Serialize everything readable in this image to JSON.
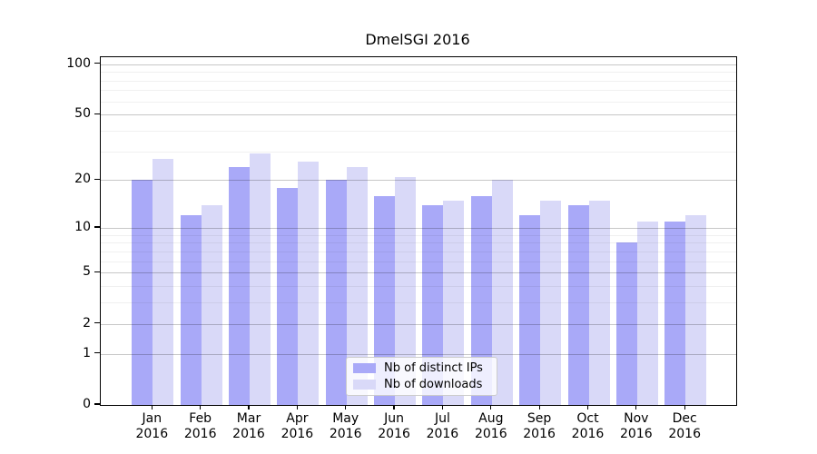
{
  "chart_data": {
    "type": "bar",
    "title": "DmelSGI 2016",
    "xlabel": "",
    "ylabel": "",
    "months": [
      "Jan",
      "Feb",
      "Mar",
      "Apr",
      "May",
      "Jun",
      "Jul",
      "Aug",
      "Sep",
      "Oct",
      "Nov",
      "Dec"
    ],
    "year_label": "2016",
    "series": [
      {
        "name": "Nb of distinct IPs",
        "color": "#a9a9f8",
        "values": [
          20,
          12,
          24,
          18,
          20,
          16,
          14,
          16,
          12,
          14,
          8,
          11
        ]
      },
      {
        "name": "Nb of downloads",
        "color": "#d9d9f8",
        "values": [
          27,
          14,
          29,
          26,
          24,
          21,
          15,
          20,
          15,
          15,
          11,
          12
        ]
      }
    ],
    "yscale": "log1p",
    "ylim": [
      0,
      110
    ],
    "yticks_major": [
      0,
      1,
      2,
      5,
      10,
      20,
      50,
      100
    ],
    "yticks_minor": [
      3,
      4,
      6,
      7,
      8,
      9,
      30,
      40,
      60,
      70,
      80,
      90
    ],
    "grid": true,
    "legend_position": "lower-center"
  },
  "colors": {
    "background": "#ffffff",
    "axis": "#000000",
    "grid_major": "#c8c8c8",
    "grid_minor": "#ebebeb",
    "legend_border": "#cccccc"
  }
}
